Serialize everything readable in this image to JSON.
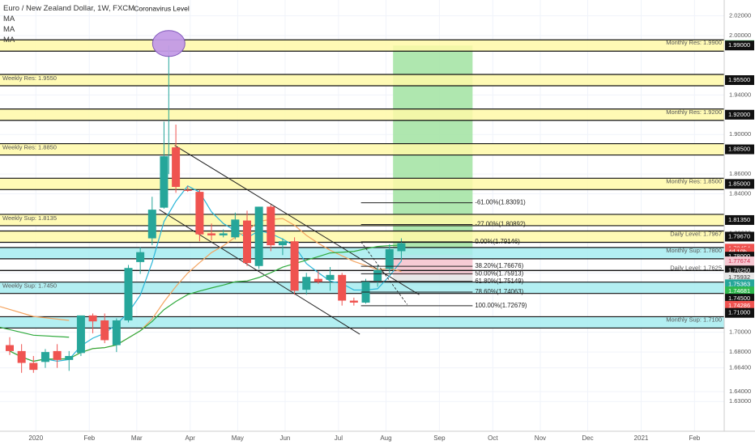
{
  "header": {
    "symbol_title": "Euro / New Zealand Dollar, 1W, FXCM",
    "indicators": [
      "MA",
      "MA",
      "MA"
    ]
  },
  "chart_data": {
    "type": "candlestick",
    "title": "Euro / New Zealand Dollar, 1W, FXCM",
    "ylim": [
      1.6306,
      2.034
    ],
    "y_ticks": [
      "2.02000",
      "2.00000",
      "1.94000",
      "1.90000",
      "1.86000",
      "1.84000",
      "1.80000",
      "1.76000",
      "1.74000",
      "1.70000",
      "1.68000",
      "1.66400",
      "1.64000",
      "1.63000"
    ],
    "x_labels": [
      "2020",
      "Feb",
      "Mar",
      "Apr",
      "May",
      "Jun",
      "Jul",
      "Aug",
      "Sep",
      "Oct",
      "Nov",
      "Dec",
      "2021",
      "Feb",
      "Mar"
    ],
    "colors": {
      "up": "#26a69a",
      "down": "#ef5350",
      "level_band": "#fff9a8",
      "support_band": "#a6ecf0",
      "target_zone": "#a6e4a6",
      "entry_zone": "#f6c8d2"
    },
    "candles": [
      {
        "o": 1.687,
        "h": 1.695,
        "l": 1.677,
        "c": 1.681
      },
      {
        "o": 1.681,
        "h": 1.688,
        "l": 1.659,
        "c": 1.669
      },
      {
        "o": 1.669,
        "h": 1.676,
        "l": 1.659,
        "c": 1.662
      },
      {
        "o": 1.67,
        "h": 1.683,
        "l": 1.664,
        "c": 1.68
      },
      {
        "o": 1.681,
        "h": 1.688,
        "l": 1.664,
        "c": 1.672
      },
      {
        "o": 1.672,
        "h": 1.681,
        "l": 1.661,
        "c": 1.676
      },
      {
        "o": 1.679,
        "h": 1.715,
        "l": 1.676,
        "c": 1.717
      },
      {
        "o": 1.717,
        "h": 1.719,
        "l": 1.699,
        "c": 1.711
      },
      {
        "o": 1.712,
        "h": 1.719,
        "l": 1.689,
        "c": 1.692
      },
      {
        "o": 1.687,
        "h": 1.714,
        "l": 1.68,
        "c": 1.712
      },
      {
        "o": 1.712,
        "h": 1.768,
        "l": 1.71,
        "c": 1.765
      },
      {
        "o": 1.771,
        "h": 1.786,
        "l": 1.759,
        "c": 1.781
      },
      {
        "o": 1.795,
        "h": 1.837,
        "l": 1.788,
        "c": 1.824
      },
      {
        "o": 1.826,
        "h": 1.913,
        "l": 1.825,
        "c": 1.878
      },
      {
        "o": 1.887,
        "h": 1.91,
        "l": 1.841,
        "c": 1.847
      },
      {
        "o": 1.844,
        "h": 1.848,
        "l": 1.842,
        "c": 1.843
      },
      {
        "o": 1.842,
        "h": 1.844,
        "l": 1.792,
        "c": 1.799
      },
      {
        "o": 1.8,
        "h": 1.81,
        "l": 1.793,
        "c": 1.798
      },
      {
        "o": 1.798,
        "h": 1.804,
        "l": 1.796,
        "c": 1.8
      },
      {
        "o": 1.796,
        "h": 1.821,
        "l": 1.794,
        "c": 1.814
      },
      {
        "o": 1.813,
        "h": 1.823,
        "l": 1.767,
        "c": 1.77
      },
      {
        "o": 1.767,
        "h": 1.827,
        "l": 1.764,
        "c": 1.827
      },
      {
        "o": 1.827,
        "h": 1.829,
        "l": 1.782,
        "c": 1.788
      },
      {
        "o": 1.788,
        "h": 1.795,
        "l": 1.778,
        "c": 1.792
      },
      {
        "o": 1.792,
        "h": 1.796,
        "l": 1.738,
        "c": 1.742
      },
      {
        "o": 1.743,
        "h": 1.76,
        "l": 1.738,
        "c": 1.756
      },
      {
        "o": 1.754,
        "h": 1.762,
        "l": 1.749,
        "c": 1.751
      },
      {
        "o": 1.753,
        "h": 1.766,
        "l": 1.742,
        "c": 1.758
      },
      {
        "o": 1.758,
        "h": 1.76,
        "l": 1.727,
        "c": 1.732
      },
      {
        "o": 1.732,
        "h": 1.735,
        "l": 1.727,
        "c": 1.73
      },
      {
        "o": 1.73,
        "h": 1.754,
        "l": 1.729,
        "c": 1.751
      },
      {
        "o": 1.752,
        "h": 1.768,
        "l": 1.746,
        "c": 1.763
      },
      {
        "o": 1.764,
        "h": 1.789,
        "l": 1.76,
        "c": 1.784
      },
      {
        "o": 1.782,
        "h": 1.795,
        "l": 1.772,
        "c": 1.79
      }
    ],
    "horizontal_levels": [
      {
        "label": "Monthly Res: 1.9900",
        "price": 1.99,
        "side": "right",
        "style": "band"
      },
      {
        "label": "Weekly Res: 1.9550",
        "price": 1.955,
        "side": "left",
        "style": "band"
      },
      {
        "label": "Monthly Res: 1.9200",
        "price": 1.92,
        "side": "right",
        "style": "band"
      },
      {
        "label": "Weekly Res: 1.8850",
        "price": 1.885,
        "side": "left",
        "style": "band"
      },
      {
        "label": "Monthly Res: 1.8500",
        "price": 1.85,
        "side": "right",
        "style": "band"
      },
      {
        "label": "Weekly Sup: 1.8135",
        "price": 1.8135,
        "side": "left",
        "style": "band"
      },
      {
        "label": "Daily Level: 1.7967",
        "price": 1.7967,
        "side": "right",
        "style": "band"
      },
      {
        "label": "Monthly Sup: 1.7800",
        "price": 1.78,
        "side": "right",
        "style": "band_cyan"
      },
      {
        "label": "Daily Level: 1.7625",
        "price": 1.7625,
        "side": "right",
        "style": "line"
      },
      {
        "label": "Weekly Sup: 1.7450",
        "price": 1.745,
        "side": "left",
        "style": "band_cyan"
      },
      {
        "label": "Monthly Sup: 1.7100",
        "price": 1.71,
        "side": "right",
        "style": "band_cyan"
      }
    ],
    "fib_levels": [
      {
        "label": "-61.00%(1.83091)",
        "price": 1.83091
      },
      {
        "label": "-27.00%(1.80892)",
        "price": 1.80892
      },
      {
        "label": "0.00%(1.79146)",
        "price": 1.79146
      },
      {
        "label": "38.20%(1.76676)",
        "price": 1.76676
      },
      {
        "label": "50.00%(1.75913)",
        "price": 1.75913
      },
      {
        "label": "61.80%(1.75149)",
        "price": 1.75149
      },
      {
        "label": "78.60%(1.74063)",
        "price": 1.74063
      },
      {
        "label": "100.00%(1.72679)",
        "price": 1.72679
      }
    ],
    "price_tags": [
      {
        "text": "1.99035",
        "price": 1.99035,
        "color": "#2eb84d",
        "text_color": "#ffffff"
      },
      {
        "text": "1.99000",
        "price": 1.99,
        "color": "#111111",
        "text_color": "#ffffff"
      },
      {
        "text": "1.95500",
        "price": 1.955,
        "color": "#111111",
        "text_color": "#ffffff"
      },
      {
        "text": "1.92000",
        "price": 1.92,
        "color": "#111111",
        "text_color": "#ffffff"
      },
      {
        "text": "1.88500",
        "price": 1.885,
        "color": "#111111",
        "text_color": "#ffffff"
      },
      {
        "text": "1.85000",
        "price": 1.85,
        "color": "#111111",
        "text_color": "#ffffff"
      },
      {
        "text": "1.81350",
        "price": 1.8135,
        "color": "#111111",
        "text_color": "#ffffff"
      },
      {
        "text": "1.79670",
        "price": 1.7967,
        "color": "#111111",
        "text_color": "#ffffff"
      },
      {
        "text": "1.78454",
        "price": 1.78454,
        "color": "#ef5350",
        "text_color": "#ffffff"
      },
      {
        "text": "4d 10h",
        "price": 1.781,
        "color": "#ef5350",
        "text_color": "#ffffff"
      },
      {
        "text": "1.78000",
        "price": 1.7765,
        "color": "#111111",
        "text_color": "#ffffff"
      },
      {
        "text": "1.77674",
        "price": 1.7717,
        "color": "#f6c8d2",
        "text_color": "#d03050"
      },
      {
        "text": "1.76250",
        "price": 1.7625,
        "color": "#111111",
        "text_color": "#ffffff"
      },
      {
        "text": "1.75932",
        "price": 1.7555,
        "color": "#e8e8e8",
        "text_color": "#333333"
      },
      {
        "text": "1.75363",
        "price": 1.7485,
        "color": "#26a69a",
        "text_color": "#ffffff"
      },
      {
        "text": "1.74681",
        "price": 1.7413,
        "color": "#2eb84d",
        "text_color": "#ffffff"
      },
      {
        "text": "1.74500",
        "price": 1.734,
        "color": "#111111",
        "text_color": "#ffffff"
      },
      {
        "text": "1.74286",
        "price": 1.7268,
        "color": "#ef5350",
        "text_color": "#ffffff"
      },
      {
        "text": "1.71000",
        "price": 1.7196,
        "color": "#111111",
        "text_color": "#ffffff"
      }
    ],
    "annotations": [
      {
        "text": "Coronavirus Level"
      }
    ]
  }
}
